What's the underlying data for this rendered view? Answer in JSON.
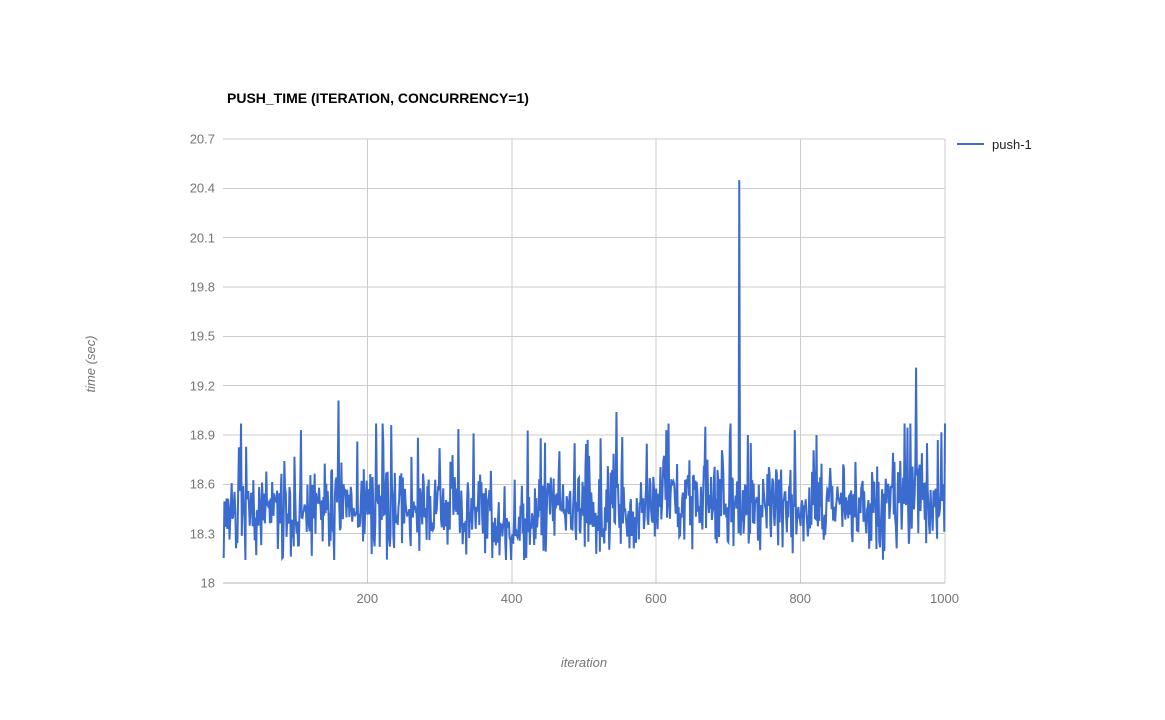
{
  "window": {
    "background": "#ffffff"
  },
  "chart_data": {
    "type": "line",
    "title": "PUSH_TIME (ITERATION, CONCURRENCY=1)",
    "xlabel": "iteration",
    "ylabel": "time (sec)",
    "xlim": [
      0,
      1000
    ],
    "ylim": [
      18,
      20.7
    ],
    "x_ticks": [
      200,
      400,
      600,
      800,
      1000
    ],
    "y_ticks": [
      18,
      18.3,
      18.6,
      18.9,
      19.2,
      19.5,
      19.8,
      20.1,
      20.4,
      20.7
    ],
    "grid": true,
    "legend_position": "top-right",
    "colors": {
      "series": "#3b6bce",
      "gridline": "#cccccc",
      "baseline": "#b3b3b3",
      "tick_label": "#757575",
      "axis_title": "#757575",
      "title": "#000000",
      "legend_text": "#222222",
      "background": "#ffffff"
    },
    "series": [
      {
        "name": "push-1",
        "color": "#3b6bce",
        "n_points": 1000,
        "baseline_mean": 18.43,
        "noise_band": [
          18.14,
          18.97
        ],
        "noise_spread": 0.3,
        "peak_prob": 0.12,
        "peak_amp": 0.42,
        "seed": 7,
        "drift_regions": [
          {
            "from": 80,
            "to": 140,
            "offset": -0.03
          },
          {
            "from": 370,
            "to": 430,
            "offset": -0.05
          },
          {
            "from": 580,
            "to": 770,
            "offset": 0.06
          },
          {
            "from": 920,
            "to": 1000,
            "offset": 0.07
          }
        ],
        "spikes": [
          {
            "x": 25,
            "y": 18.97
          },
          {
            "x": 108,
            "y": 18.93
          },
          {
            "x": 160,
            "y": 19.11
          },
          {
            "x": 233,
            "y": 18.96
          },
          {
            "x": 347,
            "y": 18.91
          },
          {
            "x": 440,
            "y": 18.88
          },
          {
            "x": 505,
            "y": 18.87
          },
          {
            "x": 545,
            "y": 19.04
          },
          {
            "x": 614,
            "y": 18.93
          },
          {
            "x": 668,
            "y": 18.95
          },
          {
            "x": 703,
            "y": 18.97
          },
          {
            "x": 715,
            "y": 20.45
          },
          {
            "x": 727,
            "y": 18.9
          },
          {
            "x": 792,
            "y": 18.93
          },
          {
            "x": 822,
            "y": 18.9
          },
          {
            "x": 960,
            "y": 19.31
          },
          {
            "x": 975,
            "y": 18.85
          }
        ]
      }
    ]
  }
}
